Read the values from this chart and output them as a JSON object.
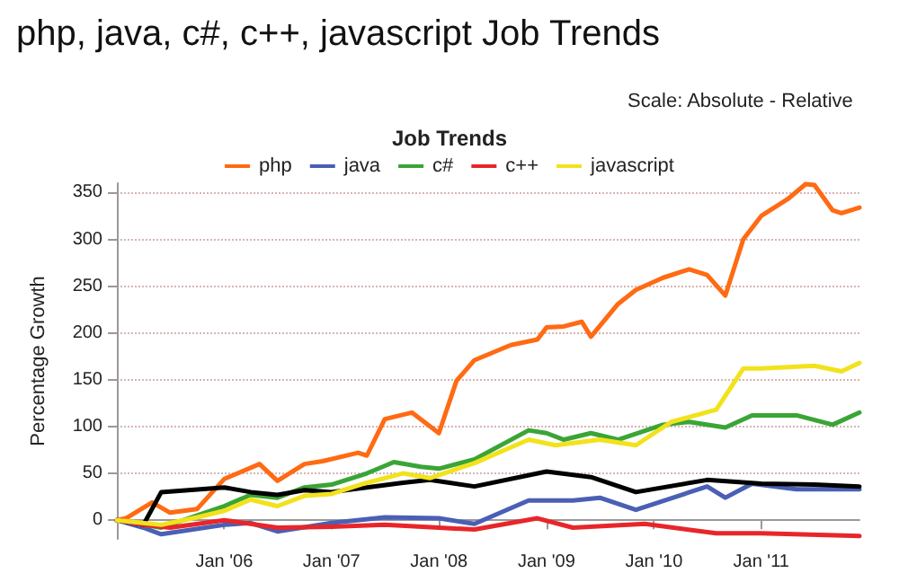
{
  "chart_data": {
    "type": "line",
    "title": "php, java, c#, c++, javascript Job Trends",
    "subtitle": "Job Trends",
    "ylabel": "Percentage Growth",
    "annotations": [
      "Scale: Absolute - Relative"
    ],
    "xlim": [
      "2005-01-01",
      "2011-12-01"
    ],
    "xticks": [
      {
        "value": "2006-01-01",
        "label": "Jan '06"
      },
      {
        "value": "2007-01-01",
        "label": "Jan '07"
      },
      {
        "value": "2008-01-01",
        "label": "Jan '08"
      },
      {
        "value": "2009-01-01",
        "label": "Jan '09"
      },
      {
        "value": "2010-01-01",
        "label": "Jan '10"
      },
      {
        "value": "2011-01-01",
        "label": "Jan '11"
      }
    ],
    "ylim": [
      -20,
      360
    ],
    "yticks": [
      0,
      50,
      100,
      150,
      200,
      250,
      300,
      350
    ],
    "grid": "y",
    "legend": "top",
    "marker": "none",
    "line_style": "solid",
    "series": [
      {
        "name": "php",
        "color": "#ff6a13",
        "x": [
          "2005-01-01",
          "2005-02-01",
          "2005-05-01",
          "2005-07-01",
          "2005-10-01",
          "2006-01-01",
          "2006-05-01",
          "2006-07-01",
          "2006-10-01",
          "2006-12-01",
          "2007-04-01",
          "2007-05-01",
          "2007-07-01",
          "2007-10-01",
          "2008-01-01",
          "2008-03-01",
          "2008-05-01",
          "2008-09-01",
          "2008-12-01",
          "2009-01-01",
          "2009-03-01",
          "2009-05-01",
          "2009-06-01",
          "2009-09-01",
          "2009-11-01",
          "2010-02-01",
          "2010-05-01",
          "2010-07-01",
          "2010-09-01",
          "2010-11-01",
          "2011-01-01",
          "2011-04-01",
          "2011-06-01",
          "2011-07-01",
          "2011-09-01",
          "2011-10-01",
          "2011-12-01"
        ],
        "values": [
          0,
          2,
          19,
          8,
          12,
          44,
          60,
          42,
          60,
          63,
          72,
          69,
          108,
          115,
          93,
          149,
          171,
          187,
          193,
          206,
          207,
          212,
          196,
          231,
          246,
          259,
          268,
          262,
          240,
          300,
          325,
          343,
          359,
          358,
          331,
          328,
          334
        ]
      },
      {
        "name": "java",
        "color": "#4a5fb5",
        "x": [
          "2005-01-01",
          "2005-04-01",
          "2005-06-01",
          "2006-01-01",
          "2006-04-01",
          "2006-07-01",
          "2007-01-01",
          "2007-07-01",
          "2008-01-01",
          "2008-05-01",
          "2008-11-01",
          "2009-04-01",
          "2009-07-01",
          "2009-11-01",
          "2010-07-01",
          "2010-09-01",
          "2010-12-01",
          "2011-05-01",
          "2011-12-01"
        ],
        "values": [
          0,
          -8,
          -15,
          -5,
          -3,
          -12,
          -3,
          3,
          2,
          -4,
          21,
          21,
          24,
          11,
          36,
          24,
          39,
          33,
          33
        ]
      },
      {
        "name": "c#",
        "color": "#3aa536",
        "x": [
          "2005-01-01",
          "2005-06-01",
          "2005-10-01",
          "2006-01-01",
          "2006-04-01",
          "2006-07-01",
          "2006-10-01",
          "2007-01-01",
          "2007-05-01",
          "2007-08-01",
          "2007-11-01",
          "2008-01-01",
          "2008-05-01",
          "2008-11-01",
          "2009-01-01",
          "2009-03-01",
          "2009-06-01",
          "2009-09-01",
          "2010-02-01",
          "2010-05-01",
          "2010-09-01",
          "2010-12-01",
          "2011-05-01",
          "2011-09-01",
          "2011-12-01"
        ],
        "values": [
          0,
          -8,
          5,
          15,
          27,
          24,
          35,
          38,
          50,
          62,
          57,
          55,
          65,
          96,
          93,
          86,
          93,
          86,
          102,
          105,
          99,
          112,
          112,
          102,
          115
        ]
      },
      {
        "color": "#000000",
        "x": [
          "2005-01-01",
          "2005-04-01",
          "2005-06-01",
          "2005-09-01",
          "2006-01-01",
          "2006-04-01",
          "2006-07-01",
          "2006-10-01",
          "2007-01-01",
          "2007-05-01",
          "2007-09-01",
          "2007-12-01",
          "2008-05-01",
          "2009-01-01",
          "2009-06-01",
          "2009-11-01",
          "2010-07-01",
          "2011-01-01",
          "2011-07-01",
          "2011-12-01"
        ],
        "values": [
          0,
          -5,
          30,
          32,
          35,
          30,
          27,
          32,
          30,
          35,
          40,
          43,
          36,
          52,
          46,
          30,
          43,
          39,
          38,
          36
        ]
      },
      {
        "name": "c++",
        "color": "#e8262a",
        "x": [
          "2005-01-01",
          "2005-04-01",
          "2005-07-01",
          "2006-01-01",
          "2006-07-01",
          "2007-01-01",
          "2007-07-01",
          "2008-01-01",
          "2008-05-01",
          "2008-12-01",
          "2009-04-01",
          "2009-12-01",
          "2010-08-01",
          "2011-01-01",
          "2011-12-01"
        ],
        "values": [
          0,
          -5,
          -8,
          0,
          -8,
          -7,
          -5,
          -8,
          -10,
          2,
          -8,
          -4,
          -14,
          -14,
          -17
        ]
      },
      {
        "name": "javascript",
        "color": "#f2e21c",
        "x": [
          "2005-01-01",
          "2005-06-01",
          "2005-10-01",
          "2006-01-01",
          "2006-04-01",
          "2006-07-01",
          "2006-10-01",
          "2007-01-01",
          "2007-05-01",
          "2007-09-01",
          "2007-12-01",
          "2008-05-01",
          "2008-11-01",
          "2009-02-01",
          "2009-07-01",
          "2009-11-01",
          "2010-03-01",
          "2010-08-01",
          "2010-11-01",
          "2011-01-01",
          "2011-07-01",
          "2011-10-01",
          "2011-12-01"
        ],
        "values": [
          0,
          -5,
          3,
          10,
          22,
          15,
          26,
          28,
          40,
          50,
          45,
          61,
          86,
          80,
          86,
          80,
          105,
          118,
          162,
          162,
          165,
          159,
          168
        ]
      }
    ]
  }
}
